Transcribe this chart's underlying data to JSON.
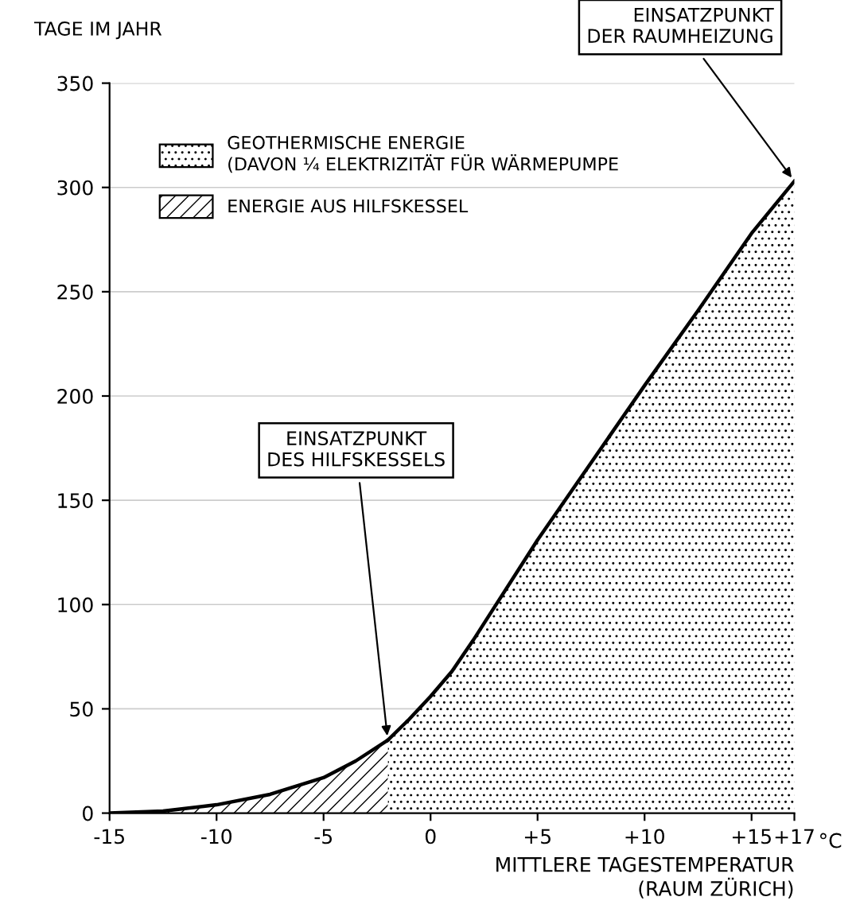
{
  "chart_data": {
    "type": "area",
    "xlabel": "MITTLERE TAGESTEMPERATUR\n(RAUM ZÜRICH)",
    "ylabel": "TAGE IM JAHR",
    "series": [
      {
        "name": "GEOTHERMISCHE ENERGIE\n(DAVON ¼ ELEKTRIZITÄT FÜR WÄRMEPUMPE",
        "color": "#000000",
        "x": [
          -2,
          -1,
          0,
          1,
          2,
          3,
          4,
          5,
          7.5,
          10,
          12.5,
          15,
          17
        ],
        "values": [
          35,
          45,
          56,
          68,
          83,
          99,
          115,
          131,
          168,
          205,
          241,
          278,
          303
        ]
      },
      {
        "name": "ENERGIE AUS HILFSKESSEL",
        "color": "#000000",
        "x": [
          -15,
          -12.5,
          -10,
          -7.5,
          -5,
          -3.5,
          -2
        ],
        "values": [
          0,
          1,
          4,
          9,
          17,
          25,
          35
        ]
      }
    ],
    "xlim": [
      -15,
      17
    ],
    "ylim": [
      0,
      350
    ],
    "xticks": [
      -15,
      -10,
      -5,
      0,
      {
        "value": 5,
        "label": "+5"
      },
      {
        "value": 10,
        "label": "+10"
      },
      {
        "value": 15,
        "label": "+15"
      },
      {
        "value": 17,
        "label": "+17"
      }
    ],
    "yticks": [
      0,
      50,
      100,
      150,
      200,
      250,
      300,
      350
    ],
    "grid": "y",
    "legend": "top left",
    "annotations": [
      {
        "text": "EINSATZPUNKT\nDER RAUMHEIZUNG",
        "x": 17,
        "y": 303
      },
      {
        "text": "EINSATZPUNKT\nDES HILFSKESSELS",
        "x": -2,
        "y": 35
      },
      "°C"
    ]
  }
}
